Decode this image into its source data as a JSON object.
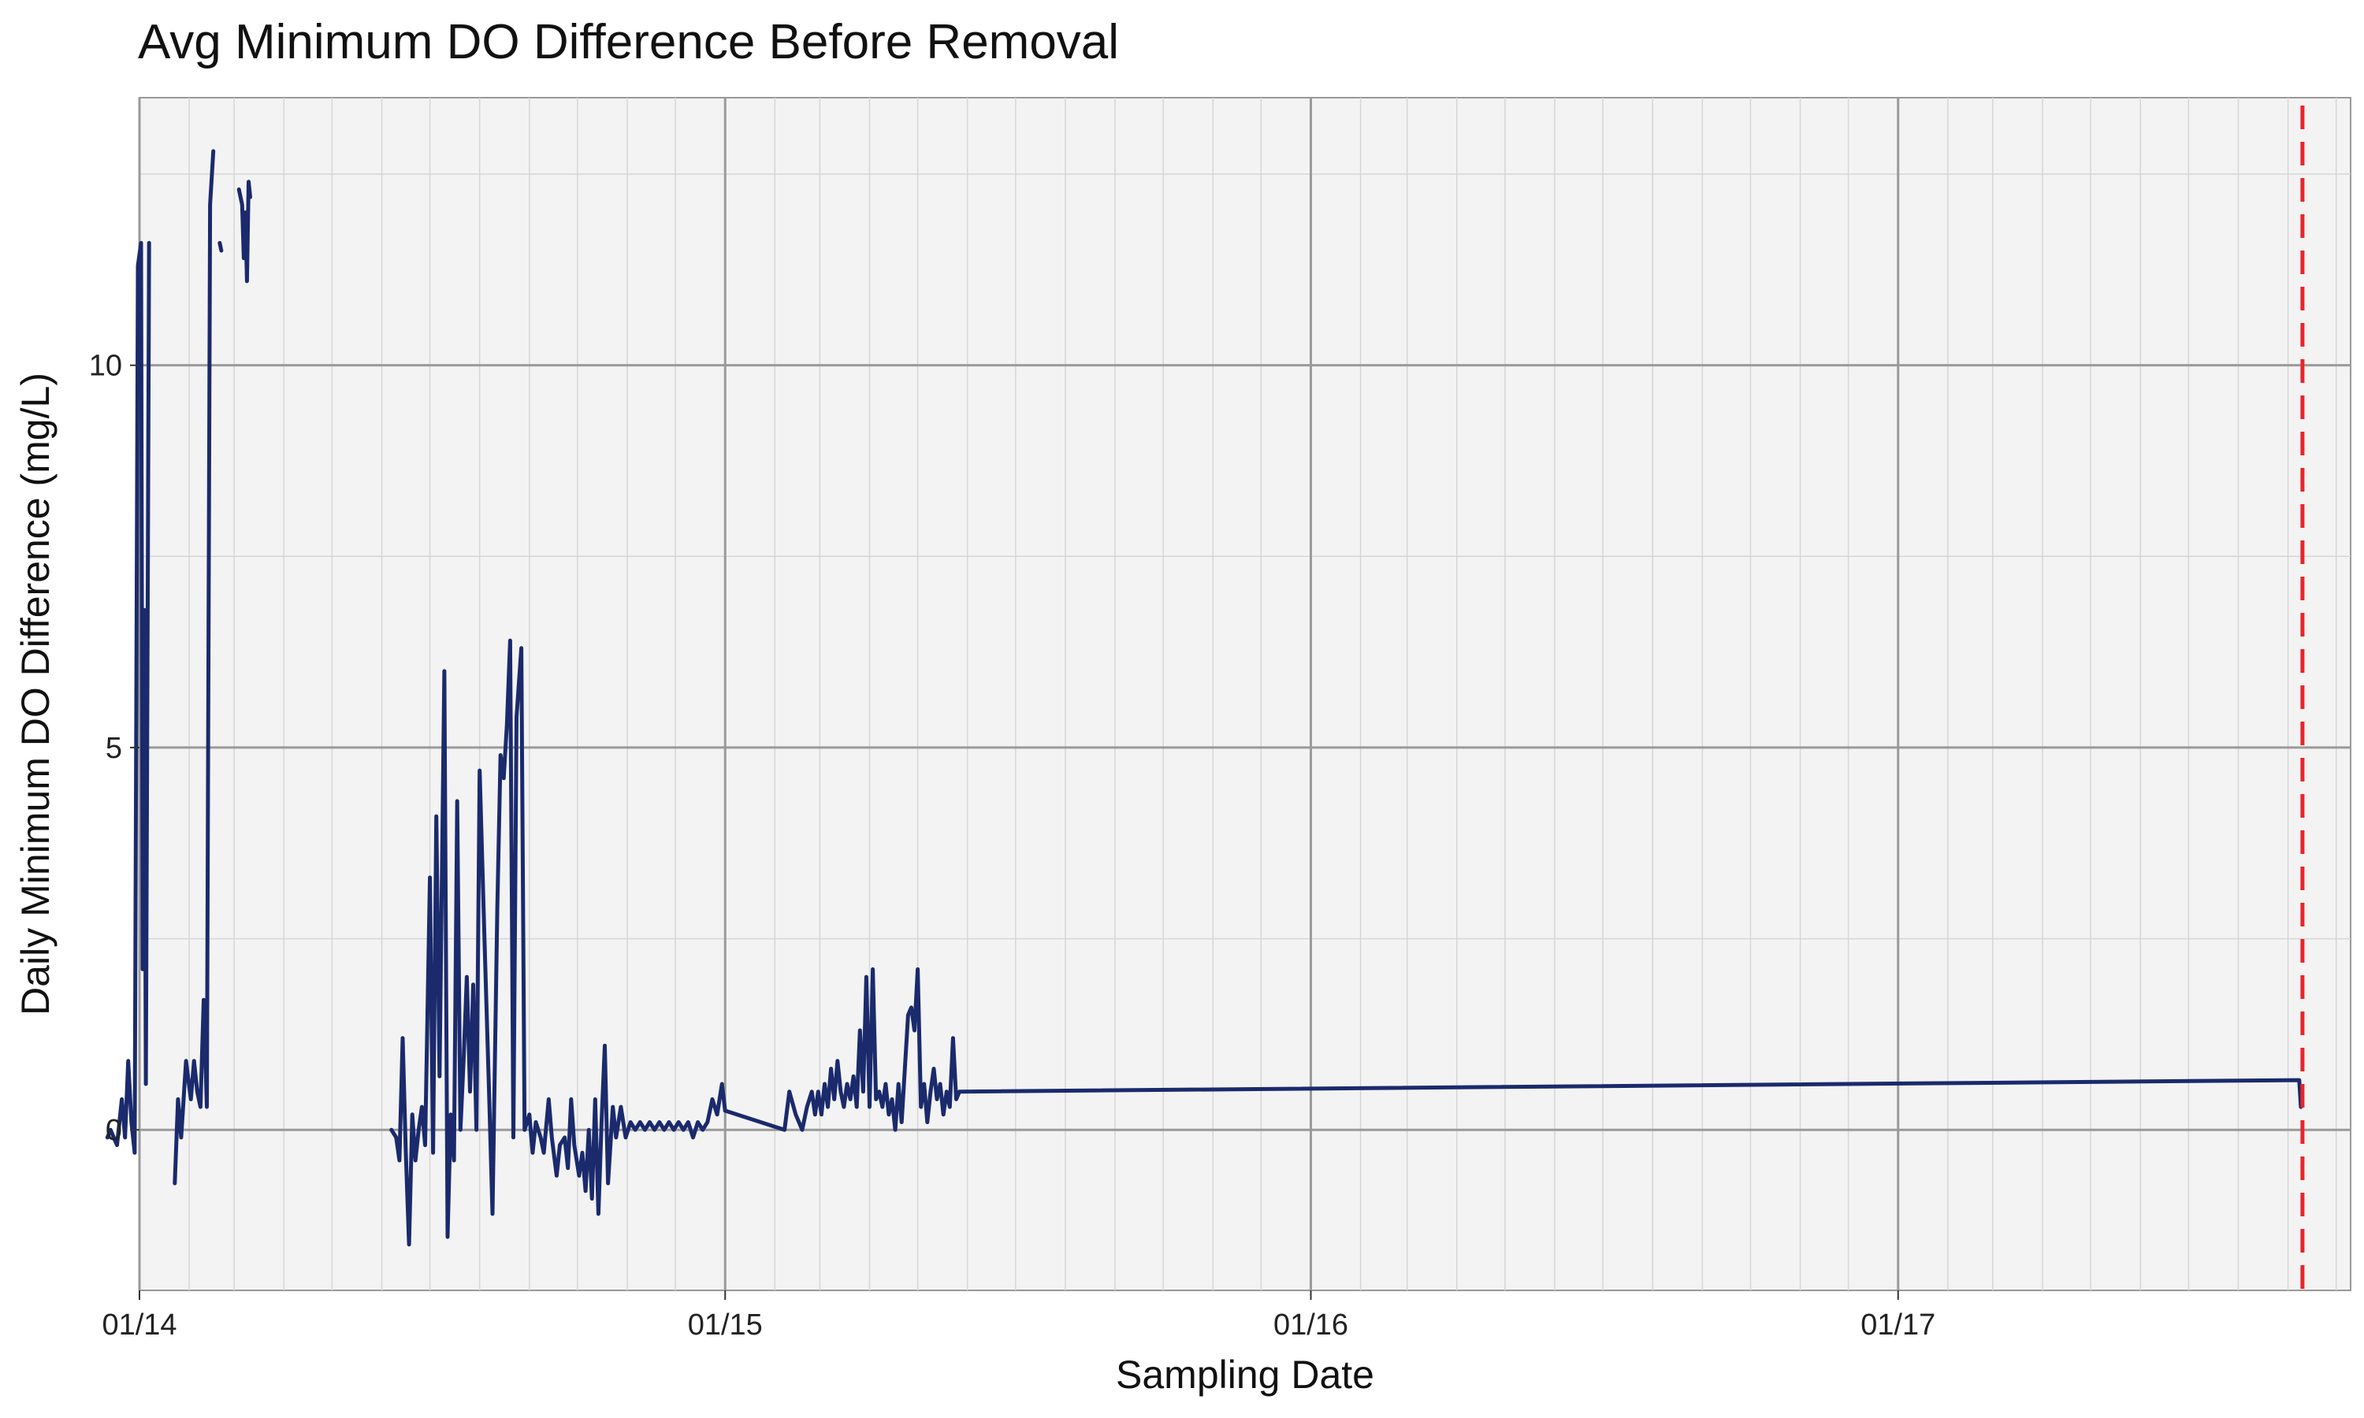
{
  "chart_data": {
    "type": "line",
    "title": "Avg Minimum DO Difference Before Removal",
    "xlabel": "Sampling Date",
    "ylabel": "Daily Minimum DO Difference (mg/L)",
    "x_is_date": true,
    "xlim": [
      "2014-01-01",
      "2017-10-10"
    ],
    "ylim": [
      -2.1,
      13.5
    ],
    "xticks": [
      {
        "label": "01/14",
        "date": "2014-01-01"
      },
      {
        "label": "01/15",
        "date": "2015-01-01"
      },
      {
        "label": "01/16",
        "date": "2016-01-01"
      },
      {
        "label": "01/17",
        "date": "2017-01-01"
      }
    ],
    "yticks": [
      0,
      5,
      10
    ],
    "grid": true,
    "series": [
      {
        "color": "#1a2a6c",
        "segments": [
          [
            [
              "2013-12-12",
              -0.1
            ],
            [
              "2013-12-14",
              0.0
            ],
            [
              "2013-12-18",
              -0.2
            ],
            [
              "2013-12-21",
              0.4
            ],
            [
              "2013-12-23",
              -0.1
            ],
            [
              "2013-12-25",
              0.9
            ],
            [
              "2013-12-27",
              0.1
            ],
            [
              "2013-12-29",
              -0.3
            ],
            [
              "2013-12-31",
              11.3
            ],
            [
              "2014-01-02",
              11.6
            ],
            [
              "2014-01-03",
              2.1
            ],
            [
              "2014-01-04",
              6.8
            ],
            [
              "2014-01-05",
              0.6
            ],
            [
              "2014-01-07",
              11.6
            ]
          ],
          [
            [
              "2014-01-23",
              -0.7
            ],
            [
              "2014-01-25",
              0.4
            ],
            [
              "2014-01-27",
              -0.1
            ],
            [
              "2014-01-30",
              0.9
            ],
            [
              "2014-02-02",
              0.4
            ],
            [
              "2014-02-04",
              0.9
            ],
            [
              "2014-02-06",
              0.5
            ],
            [
              "2014-02-08",
              0.3
            ],
            [
              "2014-02-10",
              1.7
            ],
            [
              "2014-02-12",
              0.3
            ],
            [
              "2014-02-14",
              12.1
            ],
            [
              "2014-02-16",
              12.8
            ]
          ],
          [
            [
              "2014-02-20",
              11.6
            ],
            [
              "2014-02-21",
              11.5
            ]
          ],
          [
            [
              "2014-03-04",
              12.3
            ],
            [
              "2014-03-06",
              12.1
            ],
            [
              "2014-03-07",
              11.4
            ],
            [
              "2014-03-08",
              12.0
            ],
            [
              "2014-03-09",
              11.1
            ],
            [
              "2014-03-10",
              12.4
            ],
            [
              "2014-03-11",
              12.2
            ]
          ],
          [
            [
              "2014-06-07",
              0.0
            ],
            [
              "2014-06-10",
              -0.1
            ],
            [
              "2014-06-12",
              -0.4
            ],
            [
              "2014-06-14",
              1.2
            ],
            [
              "2014-06-16",
              -0.3
            ],
            [
              "2014-06-18",
              -1.5
            ],
            [
              "2014-06-20",
              0.2
            ],
            [
              "2014-06-22",
              -0.4
            ],
            [
              "2014-06-24",
              0.0
            ],
            [
              "2014-06-26",
              0.3
            ],
            [
              "2014-06-28",
              -0.2
            ],
            [
              "2014-07-01",
              3.3
            ],
            [
              "2014-07-03",
              -0.3
            ],
            [
              "2014-07-05",
              4.1
            ],
            [
              "2014-07-07",
              0.7
            ],
            [
              "2014-07-10",
              6.0
            ],
            [
              "2014-07-12",
              -1.4
            ],
            [
              "2014-07-14",
              0.2
            ],
            [
              "2014-07-16",
              -0.4
            ],
            [
              "2014-07-18",
              4.3
            ],
            [
              "2014-07-20",
              0.0
            ],
            [
              "2014-07-22",
              0.9
            ],
            [
              "2014-07-24",
              2.0
            ],
            [
              "2014-07-26",
              0.5
            ],
            [
              "2014-07-28",
              1.9
            ],
            [
              "2014-07-30",
              0.0
            ],
            [
              "2014-08-01",
              4.7
            ],
            [
              "2014-08-04",
              2.5
            ],
            [
              "2014-08-07",
              0.4
            ],
            [
              "2014-08-09",
              -1.1
            ],
            [
              "2014-08-12",
              2.9
            ],
            [
              "2014-08-14",
              4.9
            ],
            [
              "2014-08-16",
              4.6
            ],
            [
              "2014-08-18",
              5.3
            ],
            [
              "2014-08-20",
              6.4
            ],
            [
              "2014-08-22",
              -0.1
            ],
            [
              "2014-08-24",
              5.4
            ],
            [
              "2014-08-27",
              6.3
            ],
            [
              "2014-08-29",
              0.0
            ],
            [
              "2014-09-01",
              0.2
            ],
            [
              "2014-09-03",
              -0.3
            ],
            [
              "2014-09-05",
              0.1
            ],
            [
              "2014-09-08",
              -0.1
            ],
            [
              "2014-09-10",
              -0.3
            ],
            [
              "2014-09-13",
              0.4
            ],
            [
              "2014-09-15",
              -0.1
            ],
            [
              "2014-09-18",
              -0.6
            ],
            [
              "2014-09-20",
              -0.2
            ],
            [
              "2014-09-23",
              -0.1
            ],
            [
              "2014-09-25",
              -0.5
            ],
            [
              "2014-09-27",
              0.4
            ],
            [
              "2014-09-29",
              -0.2
            ],
            [
              "2014-10-02",
              -0.6
            ],
            [
              "2014-10-04",
              -0.3
            ],
            [
              "2014-10-06",
              -0.8
            ],
            [
              "2014-10-08",
              0.0
            ],
            [
              "2014-10-10",
              -0.9
            ],
            [
              "2014-10-12",
              0.4
            ],
            [
              "2014-10-14",
              -1.1
            ],
            [
              "2014-10-16",
              0.1
            ],
            [
              "2014-10-18",
              1.1
            ],
            [
              "2014-10-20",
              -0.7
            ],
            [
              "2014-10-23",
              0.3
            ],
            [
              "2014-10-25",
              -0.1
            ],
            [
              "2014-10-28",
              0.3
            ],
            [
              "2014-10-31",
              -0.1
            ],
            [
              "2014-11-03",
              0.1
            ],
            [
              "2014-11-06",
              0.0
            ],
            [
              "2014-11-09",
              0.1
            ],
            [
              "2014-11-12",
              0.0
            ],
            [
              "2014-11-15",
              0.1
            ],
            [
              "2014-11-18",
              0.0
            ],
            [
              "2014-11-21",
              0.1
            ],
            [
              "2014-11-24",
              0.0
            ],
            [
              "2014-11-27",
              0.1
            ],
            [
              "2014-11-30",
              0.0
            ],
            [
              "2014-12-03",
              0.1
            ],
            [
              "2014-12-06",
              0.0
            ],
            [
              "2014-12-09",
              0.1
            ],
            [
              "2014-12-12",
              -0.1
            ],
            [
              "2014-12-15",
              0.1
            ],
            [
              "2014-12-18",
              0.0
            ],
            [
              "2014-12-21",
              0.1
            ],
            [
              "2014-12-24",
              0.4
            ],
            [
              "2014-12-27",
              0.2
            ],
            [
              "2014-12-30",
              0.6
            ],
            [
              "2015-01-01",
              0.25
            ],
            [
              "2015-02-07",
              0.0
            ],
            [
              "2015-02-10",
              0.5
            ],
            [
              "2015-02-14",
              0.2
            ],
            [
              "2015-02-18",
              0.0
            ],
            [
              "2015-02-21",
              0.3
            ],
            [
              "2015-02-24",
              0.5
            ],
            [
              "2015-02-26",
              0.2
            ],
            [
              "2015-02-28",
              0.5
            ],
            [
              "2015-03-02",
              0.2
            ],
            [
              "2015-03-04",
              0.6
            ],
            [
              "2015-03-06",
              0.3
            ],
            [
              "2015-03-08",
              0.8
            ],
            [
              "2015-03-10",
              0.4
            ],
            [
              "2015-03-12",
              0.9
            ],
            [
              "2015-03-14",
              0.5
            ],
            [
              "2015-03-16",
              0.3
            ],
            [
              "2015-03-18",
              0.6
            ],
            [
              "2015-03-20",
              0.4
            ],
            [
              "2015-03-22",
              0.7
            ],
            [
              "2015-03-24",
              0.3
            ],
            [
              "2015-03-26",
              1.3
            ],
            [
              "2015-03-28",
              0.5
            ],
            [
              "2015-03-30",
              2.0
            ],
            [
              "2015-04-01",
              0.3
            ],
            [
              "2015-04-03",
              2.1
            ],
            [
              "2015-04-05",
              0.4
            ],
            [
              "2015-04-07",
              0.5
            ],
            [
              "2015-04-09",
              0.3
            ],
            [
              "2015-04-11",
              0.6
            ],
            [
              "2015-04-13",
              0.2
            ],
            [
              "2015-04-15",
              0.4
            ],
            [
              "2015-04-17",
              0.0
            ],
            [
              "2015-04-19",
              0.6
            ],
            [
              "2015-04-21",
              0.1
            ],
            [
              "2015-04-23",
              0.8
            ],
            [
              "2015-04-25",
              1.5
            ],
            [
              "2015-04-27",
              1.6
            ],
            [
              "2015-04-29",
              1.3
            ],
            [
              "2015-05-01",
              2.1
            ],
            [
              "2015-05-03",
              0.3
            ],
            [
              "2015-05-05",
              0.6
            ],
            [
              "2015-05-07",
              0.1
            ],
            [
              "2015-05-09",
              0.5
            ],
            [
              "2015-05-11",
              0.8
            ],
            [
              "2015-05-13",
              0.4
            ],
            [
              "2015-05-15",
              0.6
            ],
            [
              "2015-05-17",
              0.2
            ],
            [
              "2015-05-19",
              0.5
            ],
            [
              "2015-05-21",
              0.3
            ],
            [
              "2015-05-23",
              1.2
            ],
            [
              "2015-05-25",
              0.4
            ],
            [
              "2015-05-27",
              0.5
            ],
            [
              "2017-09-08",
              0.65
            ],
            [
              "2017-09-09",
              0.3
            ]
          ]
        ]
      }
    ],
    "vline": {
      "date": "2017-09-10",
      "color": "#e8262c",
      "style": "dashed"
    }
  }
}
